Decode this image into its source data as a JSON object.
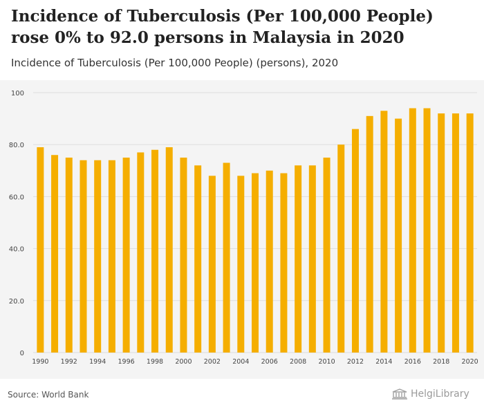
{
  "header": {
    "title": "Incidence of Tuberculosis (Per 100,000 People) rose 0% to 92.0 persons in Malaysia in 2020",
    "subtitle": "Incidence of Tuberculosis (Per 100,000 People) (persons), 2020"
  },
  "footer": {
    "source": "Source: World Bank",
    "logo_text": "HelgiLibrary"
  },
  "colors": {
    "bar": "#f5ae00",
    "plot_background": "#f4f4f4",
    "grid": "#dddddd"
  },
  "chart_data": {
    "type": "bar",
    "categories": [
      "1990",
      "1991",
      "1992",
      "1993",
      "1994",
      "1995",
      "1996",
      "1997",
      "1998",
      "1999",
      "2000",
      "2001",
      "2002",
      "2003",
      "2004",
      "2005",
      "2006",
      "2007",
      "2008",
      "2009",
      "2010",
      "2011",
      "2012",
      "2013",
      "2014",
      "2015",
      "2016",
      "2017",
      "2018",
      "2019",
      "2020"
    ],
    "values": [
      79,
      76,
      75,
      74,
      74,
      74,
      75,
      77,
      78,
      79,
      75,
      72,
      68,
      73,
      68,
      69,
      70,
      69,
      72,
      72,
      75,
      80,
      86,
      91,
      93,
      90,
      94,
      94,
      92,
      92,
      92
    ],
    "ylim": [
      0,
      100
    ],
    "yticks": [
      "0",
      "20.0",
      "40.0",
      "60.0",
      "80.0",
      "100"
    ],
    "ytick_values": [
      0,
      20,
      40,
      60,
      80,
      100
    ],
    "xtick_labels": [
      "1990",
      "1992",
      "1994",
      "1996",
      "1998",
      "2000",
      "2002",
      "2004",
      "2006",
      "2008",
      "2010",
      "2012",
      "2014",
      "2016",
      "2018",
      "2020"
    ],
    "grid": true
  }
}
